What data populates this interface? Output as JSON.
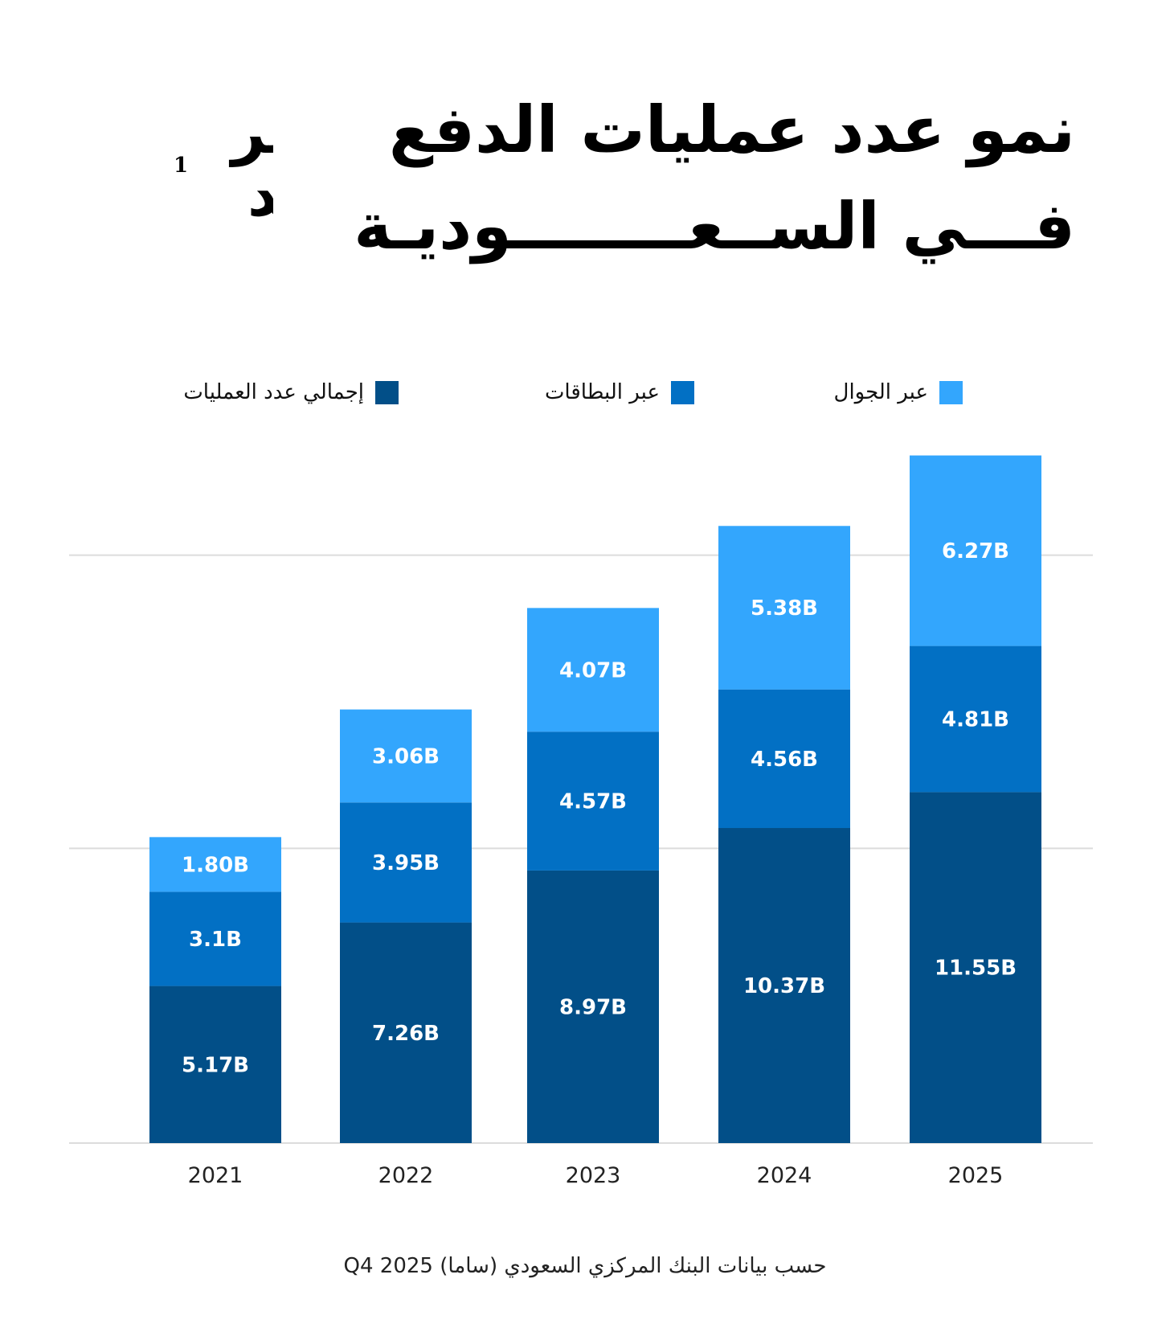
{
  "logo": {
    "line1": "صفر",
    "line2": "لـواحد",
    "mark": "1"
  },
  "title": {
    "line1": "نمو عدد عمليات الدفع",
    "line2": "فـــي الســعــــــــوديـة"
  },
  "legend": [
    {
      "label": "عبر الجوال",
      "color": "#33A6FD"
    },
    {
      "label": "عبر البطاقات",
      "color": "#0270C4"
    },
    {
      "label": "إجمالي عدد العمليات",
      "color": "#024F88"
    }
  ],
  "chart_data": {
    "type": "bar",
    "stacked": true,
    "categories": [
      "2021",
      "2022",
      "2023",
      "2024",
      "2025"
    ],
    "series": [
      {
        "name": "إجمالي عدد العمليات",
        "color": "#024F88",
        "values": [
          5.17,
          7.26,
          8.97,
          10.37,
          11.55
        ],
        "labels": [
          "5.17B",
          "7.26B",
          "8.97B",
          "10.37B",
          "11.55B"
        ]
      },
      {
        "name": "عبر البطاقات",
        "color": "#0270C4",
        "values": [
          3.1,
          3.95,
          4.57,
          4.56,
          4.81
        ],
        "labels": [
          "3.1B",
          "3.95B",
          "4.57B",
          "4.56B",
          "4.81B"
        ]
      },
      {
        "name": "عبر الجوال",
        "color": "#33A6FD",
        "values": [
          1.8,
          3.06,
          4.07,
          5.38,
          6.27
        ],
        "labels": [
          "1.80B",
          "3.06B",
          "4.07B",
          "5.38B",
          "6.27B"
        ]
      }
    ],
    "title": "نمو عدد عمليات الدفع في السعودية",
    "xlabel": "",
    "ylabel": "",
    "grid": true,
    "legend_position": "top"
  },
  "footer": {
    "source": "حسب بيانات البنك المركزي السعودي (ساما) Q4 2025"
  }
}
